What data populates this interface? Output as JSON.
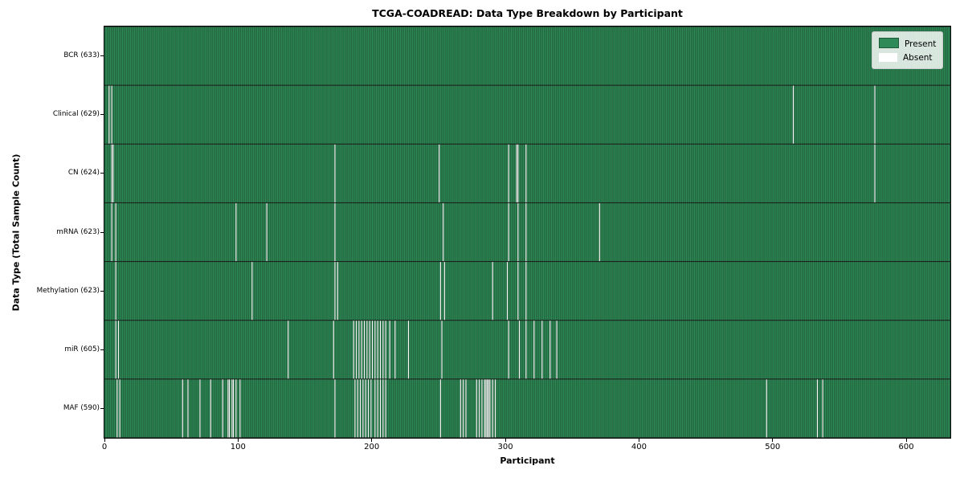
{
  "figure": {
    "title": "TCGA-COADREAD: Data Type Breakdown by Participant",
    "xlabel": "Participant",
    "ylabel": "Data Type (Total Sample Count)"
  },
  "chart_data": {
    "type": "heatmap",
    "title": "TCGA-COADREAD: Data Type Breakdown by Participant",
    "xlabel": "Participant",
    "ylabel": "Data Type (Total Sample Count)",
    "x_range": [
      0,
      633
    ],
    "x_ticks": [
      0,
      100,
      200,
      300,
      400,
      500,
      600
    ],
    "n_participants": 633,
    "grid": false,
    "cell_values": [
      "present",
      "absent"
    ],
    "colors": {
      "present": "#2e8b57",
      "absent": "#ffffff",
      "cell_edge": "#1b4a2e",
      "row_edge": "#1a1a1a",
      "axes_edge": "#000000",
      "legend_border": "#cccccc"
    },
    "legend": {
      "position": "upper right",
      "entries": [
        {
          "label": "Present",
          "color": "#2e8b57"
        },
        {
          "label": "Absent",
          "color": "#ffffff"
        }
      ]
    },
    "rows": [
      {
        "label": "BCR (633)",
        "data_type": "BCR",
        "present_count": 633,
        "absent_participants": []
      },
      {
        "label": "Clinical (629)",
        "data_type": "Clinical",
        "present_count": 629,
        "absent_participants": [
          3,
          5,
          515,
          576
        ]
      },
      {
        "label": "CN (624)",
        "data_type": "CN",
        "present_count": 624,
        "absent_participants": [
          5,
          6,
          172,
          250,
          302,
          308,
          309,
          315,
          576
        ]
      },
      {
        "label": "mRNA (623)",
        "data_type": "mRNA",
        "present_count": 623,
        "absent_participants": [
          5,
          8,
          98,
          121,
          172,
          253,
          302,
          309,
          315,
          370
        ]
      },
      {
        "label": "Methylation (623)",
        "data_type": "Methylation",
        "present_count": 623,
        "absent_participants": [
          8,
          110,
          172,
          174,
          251,
          254,
          290,
          301,
          309,
          315
        ]
      },
      {
        "label": "miR (605)",
        "data_type": "miR",
        "present_count": 605,
        "absent_participants": [
          8,
          10,
          137,
          171,
          186,
          188,
          190,
          192,
          194,
          196,
          198,
          200,
          202,
          204,
          206,
          208,
          210,
          213,
          217,
          227,
          252,
          302,
          310,
          315,
          321,
          327,
          333,
          338
        ]
      },
      {
        "label": "MAF (590)",
        "data_type": "MAF",
        "present_count": 590,
        "absent_participants": [
          9,
          11,
          58,
          62,
          71,
          79,
          88,
          92,
          93,
          95,
          96,
          98,
          101,
          172,
          187,
          189,
          191,
          193,
          195,
          197,
          199,
          202,
          204,
          206,
          208,
          210,
          251,
          266,
          268,
          270,
          278,
          280,
          282,
          284,
          285,
          286,
          287,
          288,
          290,
          292,
          495,
          533,
          537
        ]
      }
    ]
  }
}
